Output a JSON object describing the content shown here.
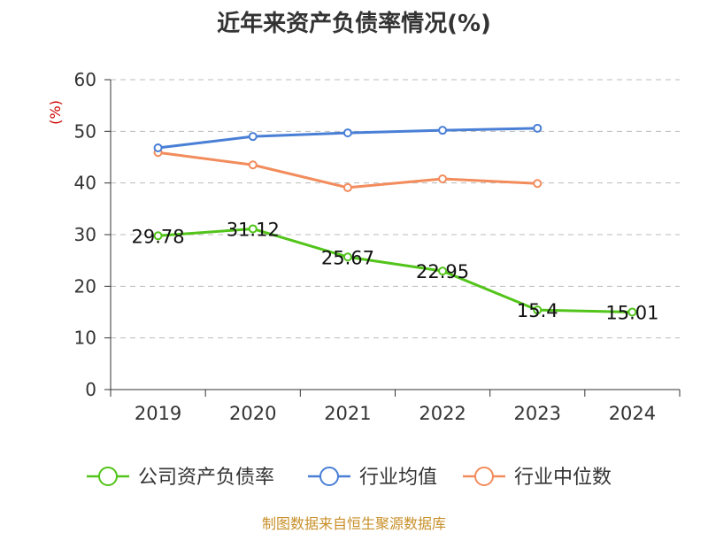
{
  "chart_data": {
    "type": "line",
    "title": "近年来资产负债率情况(%)",
    "ylabel": "(%)",
    "xlabel": "",
    "categories": [
      "2019",
      "2020",
      "2021",
      "2022",
      "2023",
      "2024"
    ],
    "ylim": [
      0,
      60
    ],
    "yticks": [
      0,
      10,
      20,
      30,
      40,
      50,
      60
    ],
    "grid": true,
    "legend_position": "bottom",
    "series": [
      {
        "name": "公司资产负债率",
        "color": "#52c41a",
        "values": [
          29.78,
          31.12,
          25.67,
          22.95,
          15.4,
          15.01
        ],
        "labels": [
          "29.78",
          "31.12",
          "25.67",
          "22.95",
          "15.4",
          "15.01"
        ]
      },
      {
        "name": "行业均值",
        "color": "#4a7fd6",
        "values": [
          46.8,
          49.0,
          49.7,
          50.2,
          50.6,
          null
        ]
      },
      {
        "name": "行业中位数",
        "color": "#f28c5c",
        "values": [
          45.9,
          43.5,
          39.1,
          40.8,
          39.9,
          null
        ]
      }
    ]
  },
  "source_note": "制图数据来自恒生聚源数据库",
  "colors": {
    "axis": "#333333",
    "grid": "#bbbbbb",
    "ylabel": "#cc0000"
  }
}
